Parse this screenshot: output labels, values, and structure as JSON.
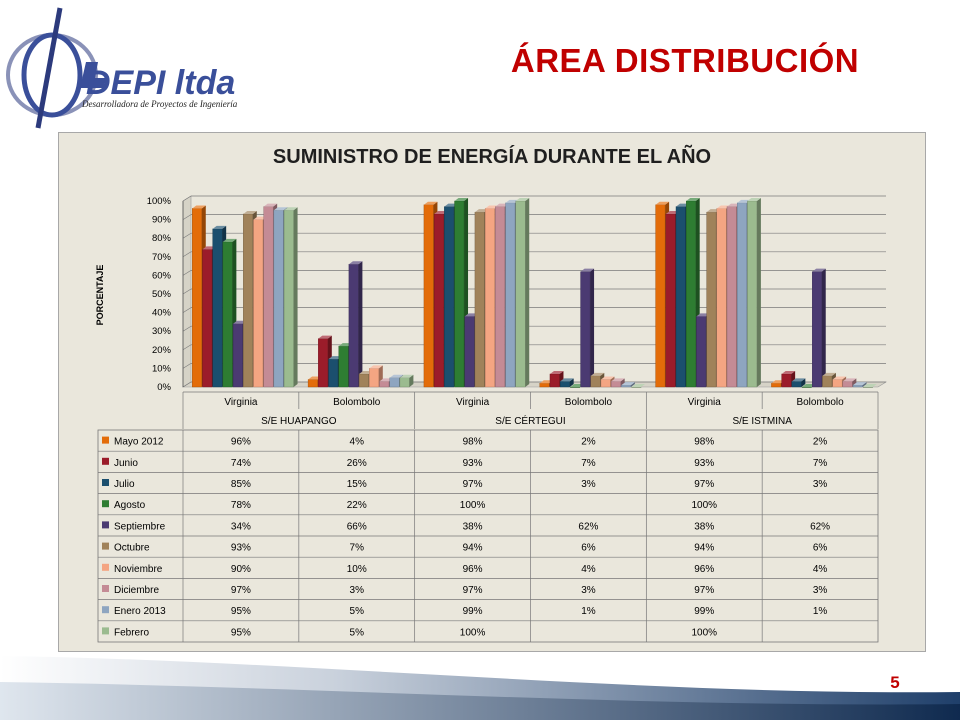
{
  "logo": {
    "name": "DEPI ltda",
    "tagline": "Desarrolladora de Proyectos de Ingeniería"
  },
  "page_title": "ÁREA DISTRIBUCIÓN",
  "page_number": "5",
  "colors": {
    "title_red": "#c00000",
    "chart_bg": "#eae7dc",
    "logo_blue": "#3a4f9a"
  },
  "chart_data": {
    "type": "bar",
    "title": "SUMINISTRO DE ENERGÍA DURANTE EL AÑO",
    "ylabel": "PORCENTAJE",
    "xlabel": "",
    "ylim": [
      0,
      100
    ],
    "y_ticks": [
      "0%",
      "10%",
      "20%",
      "30%",
      "40%",
      "50%",
      "60%",
      "70%",
      "80%",
      "90%",
      "100%"
    ],
    "grid": true,
    "three_d": true,
    "legend_placement": "table-below",
    "categories": [
      "Virginia",
      "Bolombolo",
      "Virginia",
      "Bolombolo",
      "Virginia",
      "Bolombolo"
    ],
    "groups": [
      "S/E HUAPANGO",
      "S/E CÉRTEGUI",
      "S/E ISTMINA"
    ],
    "series": [
      {
        "name": "Mayo 2012",
        "color": "#e36c09",
        "values": [
          96,
          4,
          98,
          2,
          98,
          2
        ],
        "labels": [
          "96%",
          "4%",
          "98%",
          "2%",
          "98%",
          "2%"
        ]
      },
      {
        "name": "Junio",
        "color": "#9b1c2a",
        "values": [
          74,
          26,
          93,
          7,
          93,
          7
        ],
        "labels": [
          "74%",
          "26%",
          "93%",
          "7%",
          "93%",
          "7%"
        ]
      },
      {
        "name": "Julio",
        "color": "#1b4f6e",
        "values": [
          85,
          15,
          97,
          3,
          97,
          3
        ],
        "labels": [
          "85%",
          "15%",
          "97%",
          "3%",
          "97%",
          "3%"
        ]
      },
      {
        "name": "Agosto",
        "color": "#2e7d32",
        "values": [
          78,
          22,
          100,
          0,
          100,
          0
        ],
        "labels": [
          "78%",
          "22%",
          "100%",
          "",
          "100%",
          ""
        ]
      },
      {
        "name": "Septiembre",
        "color": "#4b3a72",
        "values": [
          34,
          66,
          38,
          62,
          38,
          62
        ],
        "labels": [
          "34%",
          "66%",
          "38%",
          "62%",
          "38%",
          "62%"
        ]
      },
      {
        "name": "Octubre",
        "color": "#a0825a",
        "values": [
          93,
          7,
          94,
          6,
          94,
          6
        ],
        "labels": [
          "93%",
          "7%",
          "94%",
          "6%",
          "94%",
          "6%"
        ]
      },
      {
        "name": "Noviembre",
        "color": "#f4a582",
        "values": [
          90,
          10,
          96,
          4,
          96,
          4
        ],
        "labels": [
          "90%",
          "10%",
          "96%",
          "4%",
          "96%",
          "4%"
        ]
      },
      {
        "name": "Diciembre",
        "color": "#c48b95",
        "values": [
          97,
          3,
          97,
          3,
          97,
          3
        ],
        "labels": [
          "97%",
          "3%",
          "97%",
          "3%",
          "97%",
          "3%"
        ]
      },
      {
        "name": "Enero 2013",
        "color": "#8ea5c0",
        "values": [
          95,
          5,
          99,
          1,
          99,
          1
        ],
        "labels": [
          "95%",
          "5%",
          "99%",
          "1%",
          "99%",
          "1%"
        ]
      },
      {
        "name": "Febrero",
        "color": "#9bbb8f",
        "values": [
          95,
          5,
          100,
          0,
          100,
          0
        ],
        "labels": [
          "95%",
          "5%",
          "100%",
          "",
          "100%",
          ""
        ]
      }
    ]
  }
}
